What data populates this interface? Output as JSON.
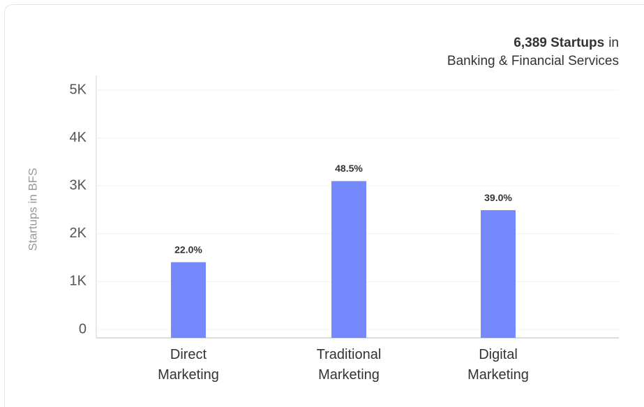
{
  "chart_data": {
    "type": "bar",
    "title": "6,389 Startups",
    "title_suffix": "in",
    "subtitle": "Banking & Financial Services",
    "ylabel": "Startups in BFS",
    "categories": [
      "Direct Marketing",
      "Traditional Marketing",
      "Digital Marketing"
    ],
    "values": [
      1406,
      3099,
      2492
    ],
    "value_labels": [
      "22.0%",
      "48.5%",
      "39.0%"
    ],
    "color": "#7689fc",
    "ylim": [
      0,
      5000
    ],
    "yticks": [
      0,
      {
        "value": 1000,
        "label": "1K"
      },
      {
        "value": 2000,
        "label": "2K"
      },
      {
        "value": 3000,
        "label": "3K"
      },
      {
        "value": 4000,
        "label": "4K"
      },
      {
        "value": 5000,
        "label": "5K"
      }
    ],
    "grid": true
  }
}
